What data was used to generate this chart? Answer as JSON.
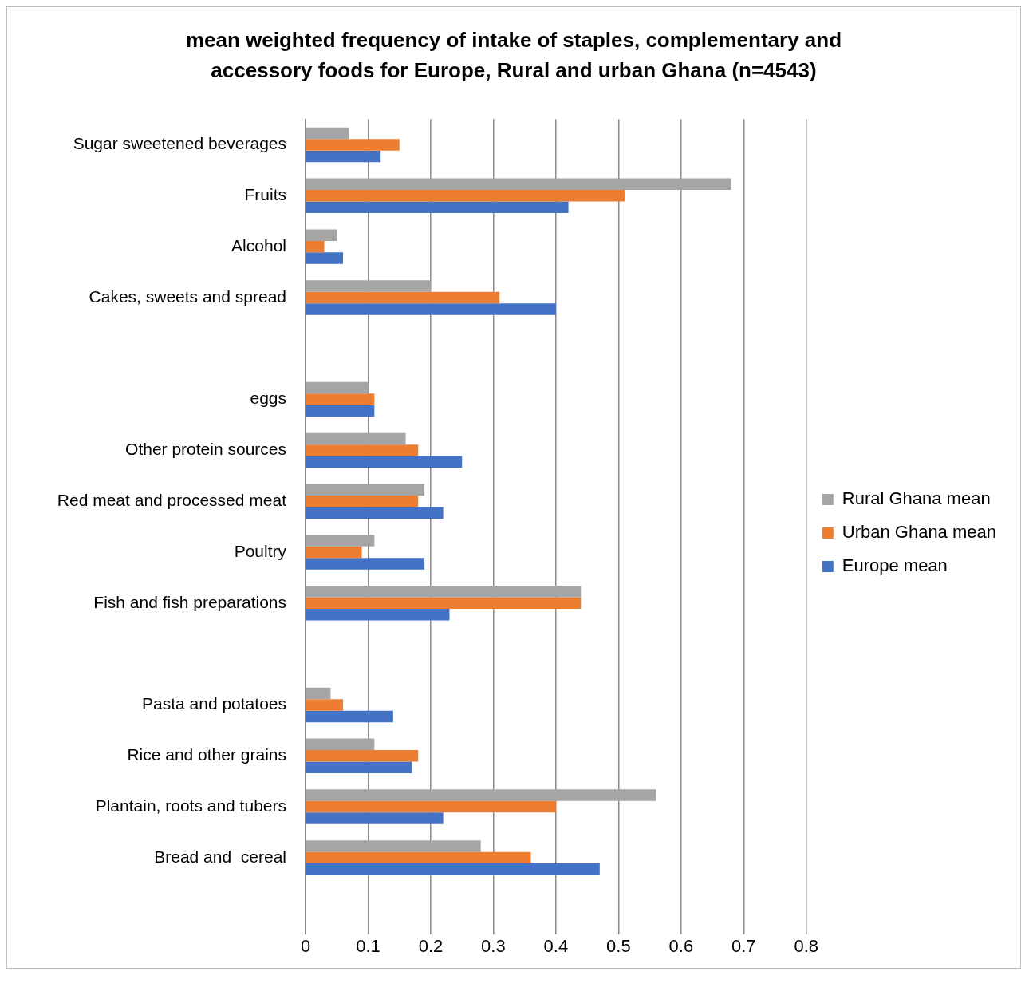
{
  "chart_data": {
    "type": "bar",
    "orientation": "horizontal",
    "title": "mean weighted frequency of intake of staples, complementary and accessory foods for Europe, Rural and urban Ghana (n=4543)",
    "categories": [
      "Sugar sweetened beverages",
      "Fruits",
      "Alcohol",
      "Cakes, sweets and spread",
      null,
      "eggs",
      "Other protein sources",
      "Red meat and processed meat",
      "Poultry",
      "Fish and fish preparations",
      null,
      "Pasta and potatoes",
      "Rice and other grains",
      "Plantain, roots and tubers",
      "Bread and  cereal",
      null
    ],
    "series": [
      {
        "name": "Rural Ghana mean",
        "color": "#a5a5a5",
        "values": [
          0.07,
          0.68,
          0.05,
          0.2,
          null,
          0.1,
          0.16,
          0.19,
          0.11,
          0.44,
          null,
          0.04,
          0.11,
          0.56,
          0.28,
          null
        ]
      },
      {
        "name": "Urban Ghana mean",
        "color": "#ed7d31",
        "values": [
          0.15,
          0.51,
          0.03,
          0.31,
          null,
          0.11,
          0.18,
          0.18,
          0.09,
          0.44,
          null,
          0.06,
          0.18,
          0.4,
          0.36,
          null
        ]
      },
      {
        "name": "Europe mean",
        "color": "#4472c4",
        "values": [
          0.12,
          0.42,
          0.06,
          0.4,
          null,
          0.11,
          0.25,
          0.22,
          0.19,
          0.23,
          null,
          0.14,
          0.17,
          0.22,
          0.47,
          null
        ]
      }
    ],
    "xlim": [
      0,
      0.8
    ],
    "xticks": [
      0,
      0.1,
      0.2,
      0.3,
      0.4,
      0.5,
      0.6,
      0.7,
      0.8
    ],
    "grid": "x",
    "legend": "right"
  }
}
